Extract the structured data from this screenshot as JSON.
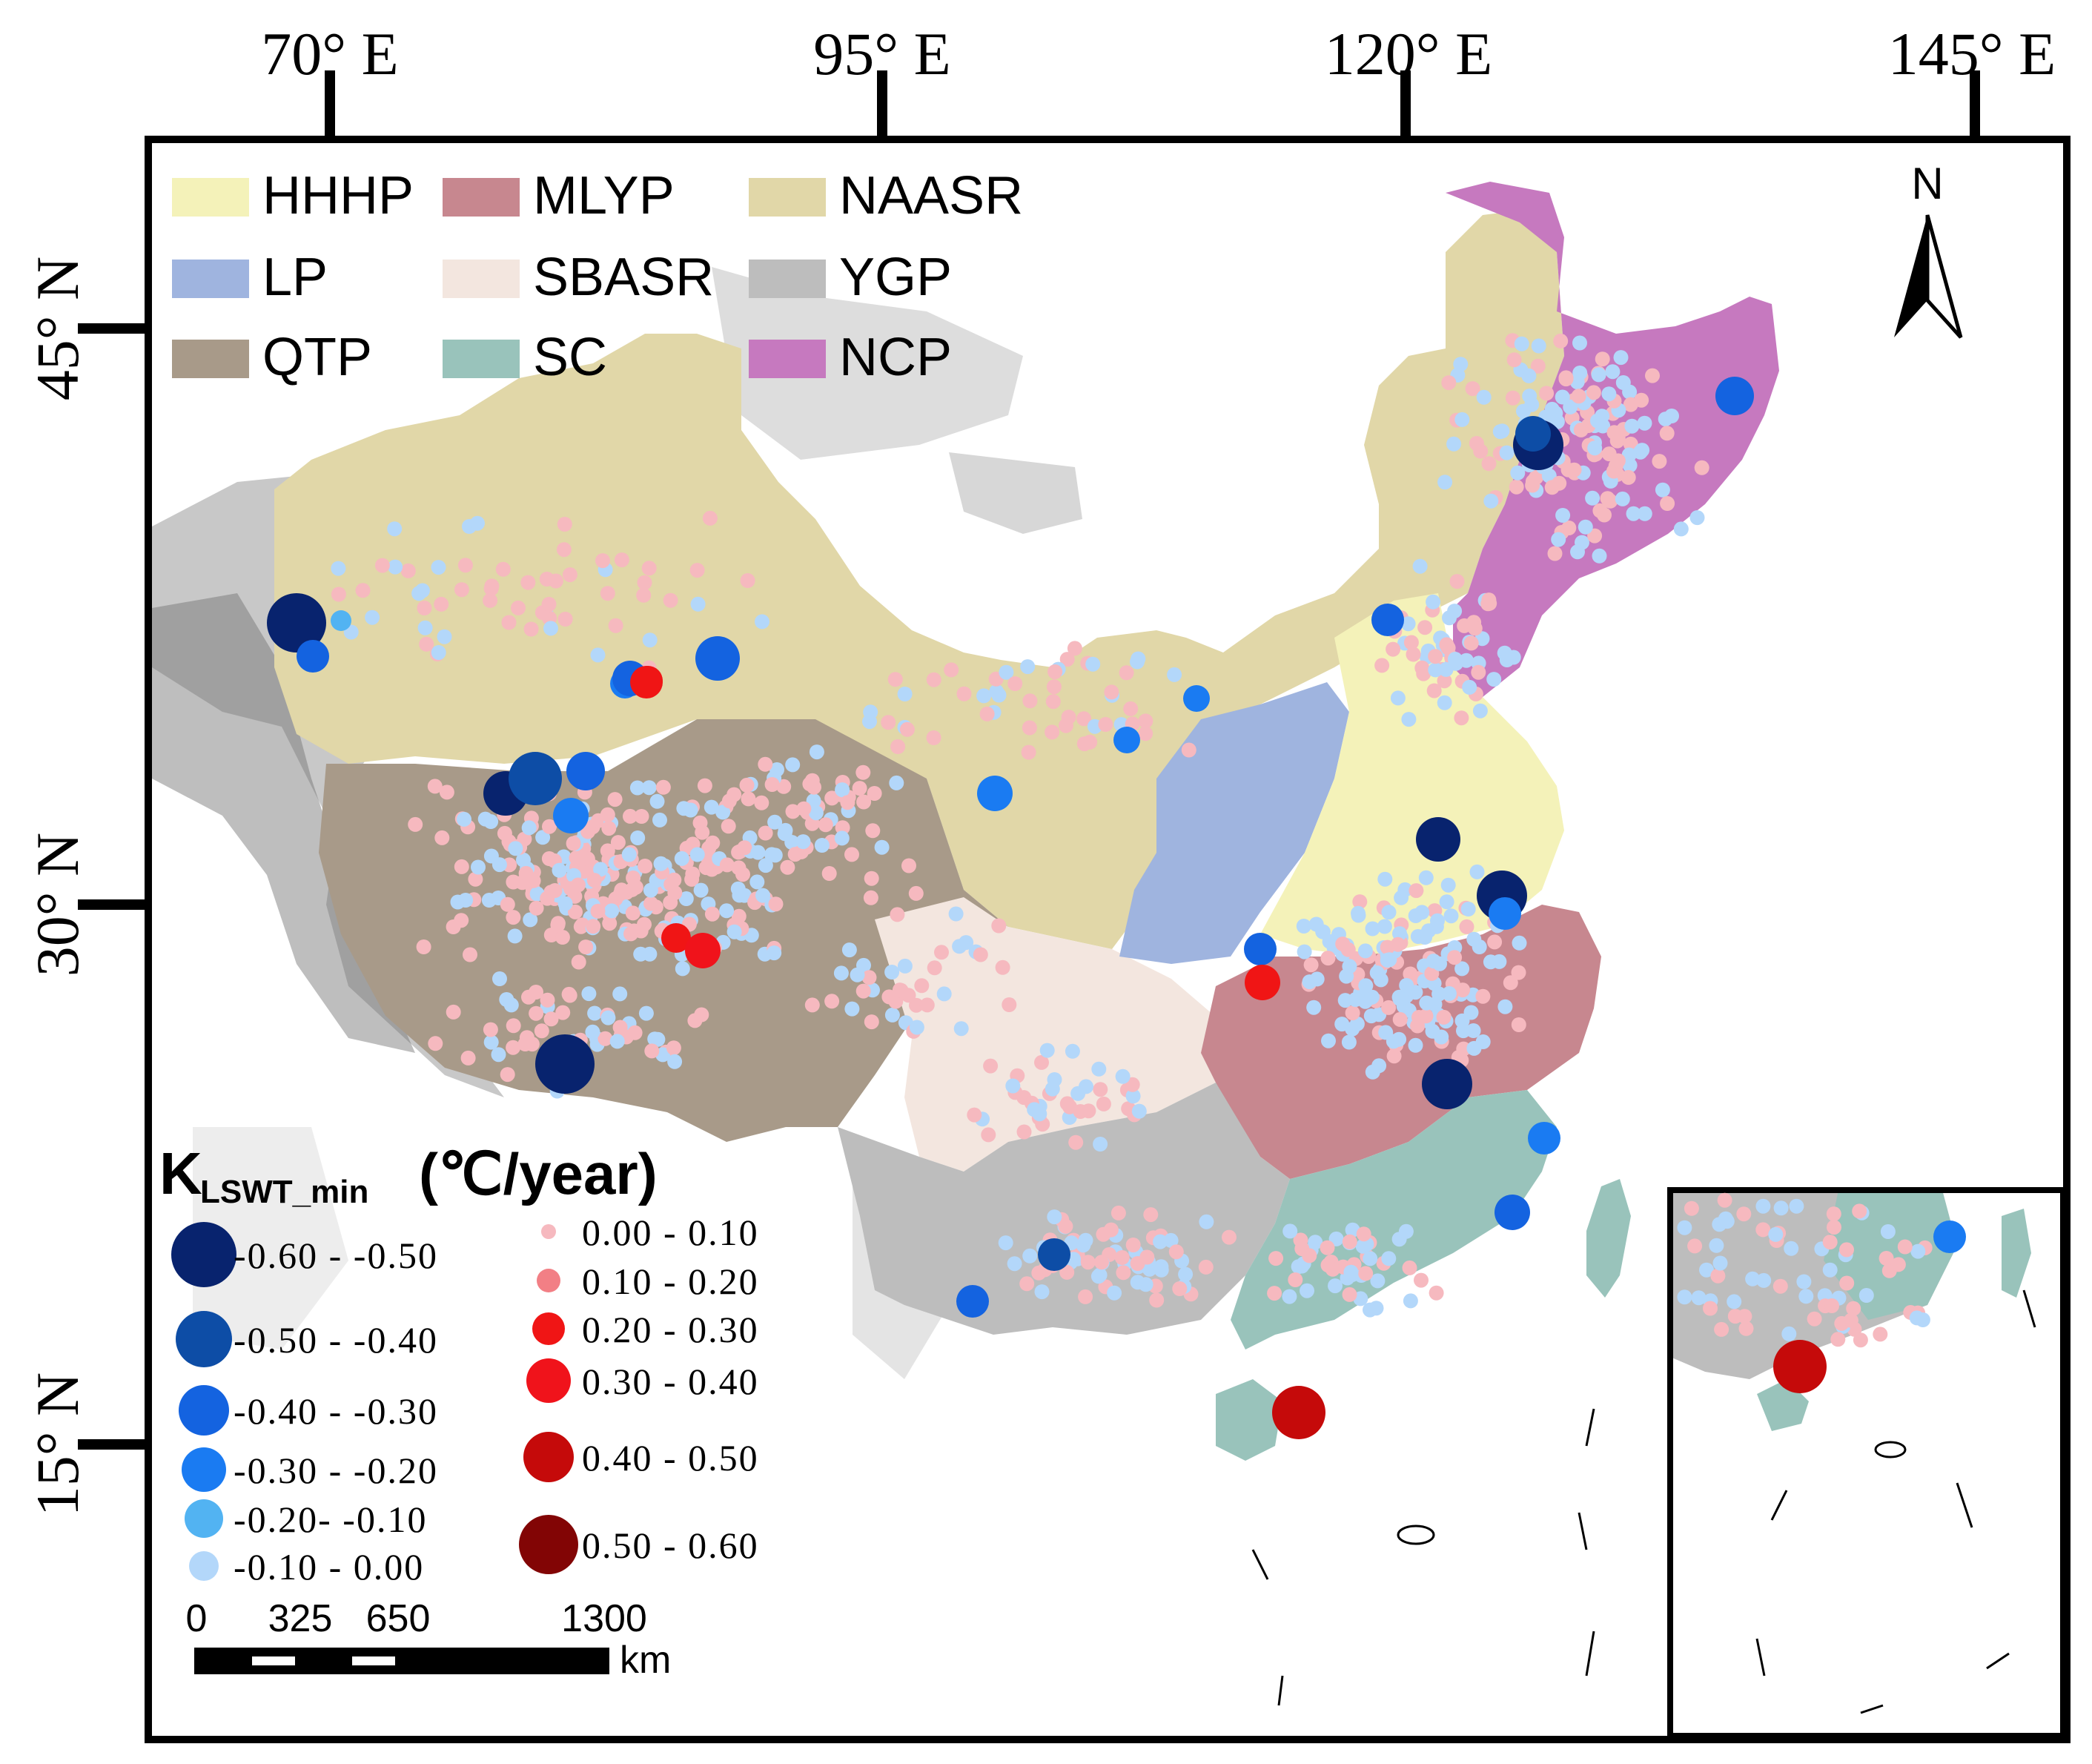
{
  "axes": {
    "longitude_labels": [
      "70° E",
      "95° E",
      "120° E",
      "145° E"
    ],
    "latitude_labels": [
      "45° N",
      "30° N",
      "15° N"
    ]
  },
  "region_legend": [
    {
      "code": "HHHP",
      "color": "#f4f2b9"
    },
    {
      "code": "MLYP",
      "color": "#c7878f"
    },
    {
      "code": "NAASR",
      "color": "#e1d7a8"
    },
    {
      "code": "LP",
      "color": "#9fb4df"
    },
    {
      "code": "SBASR",
      "color": "#f3e6df"
    },
    {
      "code": "YGP",
      "color": "#bdbdbd"
    },
    {
      "code": "QTP",
      "color": "#a89a89"
    },
    {
      "code": "SC",
      "color": "#99c3bb"
    },
    {
      "code": "NCP",
      "color": "#c679bf"
    }
  ],
  "north_arrow": {
    "label": "N"
  },
  "trend_legend": {
    "title_main": "K",
    "title_sub": "LSWT_min",
    "title_unit": "(℃/year)",
    "negative_classes": [
      {
        "label": "-0.60 - -0.50",
        "color": "#08236e"
      },
      {
        "label": "-0.50 - -0.40",
        "color": "#0d4da6"
      },
      {
        "label": "-0.40 - -0.30",
        "color": "#1463e0"
      },
      {
        "label": "-0.30 - -0.20",
        "color": "#1a7bf2"
      },
      {
        "label": "-0.20- -0.10",
        "color": "#52b3f2"
      },
      {
        "label": "-0.10 - 0.00",
        "color": "#b3d7fa"
      }
    ],
    "positive_classes": [
      {
        "label": "0.00 - 0.10",
        "color": "#f6b9bf"
      },
      {
        "label": "0.10 - 0.20",
        "color": "#f27f85"
      },
      {
        "label": "0.20 - 0.30",
        "color": "#f01515"
      },
      {
        "label": "0.30 - 0.40",
        "color": "#f0131b"
      },
      {
        "label": "0.40 - 0.50",
        "color": "#c50a0a"
      },
      {
        "label": "0.50 - 0.60",
        "color": "#820505"
      }
    ]
  },
  "scale_bar": {
    "ticks": [
      "0",
      "325",
      "650",
      "1300"
    ],
    "unit": "km"
  }
}
